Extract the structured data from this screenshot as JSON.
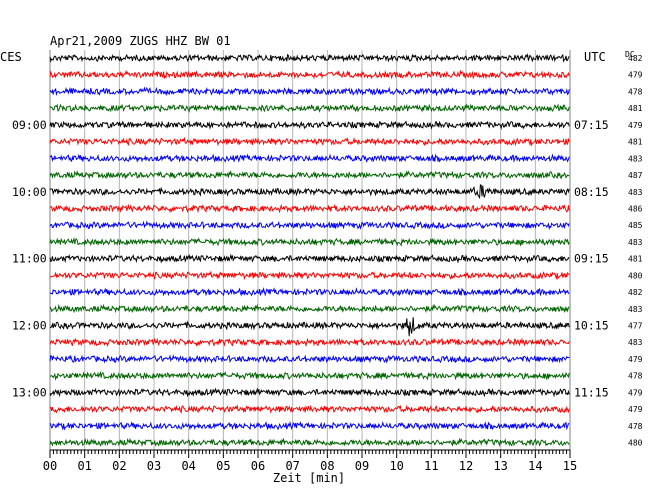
{
  "header": {
    "title": "Apr21,2009   ZUGS HHZ BW 01"
  },
  "left_tz": "CES",
  "right_tz": "UTC",
  "dc_header": "DC",
  "chart_data": {
    "type": "line",
    "title": "Apr21,2009   ZUGS HHZ BW 01",
    "xlabel": "Zeit [min]",
    "xlim": [
      0,
      15
    ],
    "x_ticks": [
      "00",
      "01",
      "02",
      "03",
      "04",
      "05",
      "06",
      "07",
      "08",
      "09",
      "10",
      "11",
      "12",
      "13",
      "14",
      "15"
    ],
    "grid": true,
    "trace_colors": [
      "#000000",
      "#ff0000",
      "#0000ff",
      "#006400"
    ],
    "traces_per_row_group": 4,
    "left_time_labels": [
      {
        "trace": 4,
        "text": "09:00"
      },
      {
        "trace": 8,
        "text": "10:00"
      },
      {
        "trace": 12,
        "text": "11:00"
      },
      {
        "trace": 16,
        "text": "12:00"
      },
      {
        "trace": 20,
        "text": "13:00"
      }
    ],
    "right_time_labels": [
      {
        "trace": 4,
        "text": "07:15"
      },
      {
        "trace": 8,
        "text": "08:15"
      },
      {
        "trace": 12,
        "text": "09:15"
      },
      {
        "trace": 16,
        "text": "10:15"
      },
      {
        "trace": 20,
        "text": "11:15"
      }
    ],
    "dc_values": [
      "482",
      "479",
      "478",
      "481",
      "479",
      "481",
      "483",
      "487",
      "483",
      "486",
      "485",
      "483",
      "481",
      "480",
      "482",
      "483",
      "477",
      "483",
      "479",
      "478",
      "479",
      "479",
      "478",
      "480"
    ],
    "events": [
      {
        "trace": 8,
        "start_min": 12.2,
        "end_min": 13.2,
        "amplitude": "moderate"
      },
      {
        "trace": 16,
        "start_min": 10.2,
        "end_min": 10.9,
        "amplitude": "large"
      }
    ]
  }
}
